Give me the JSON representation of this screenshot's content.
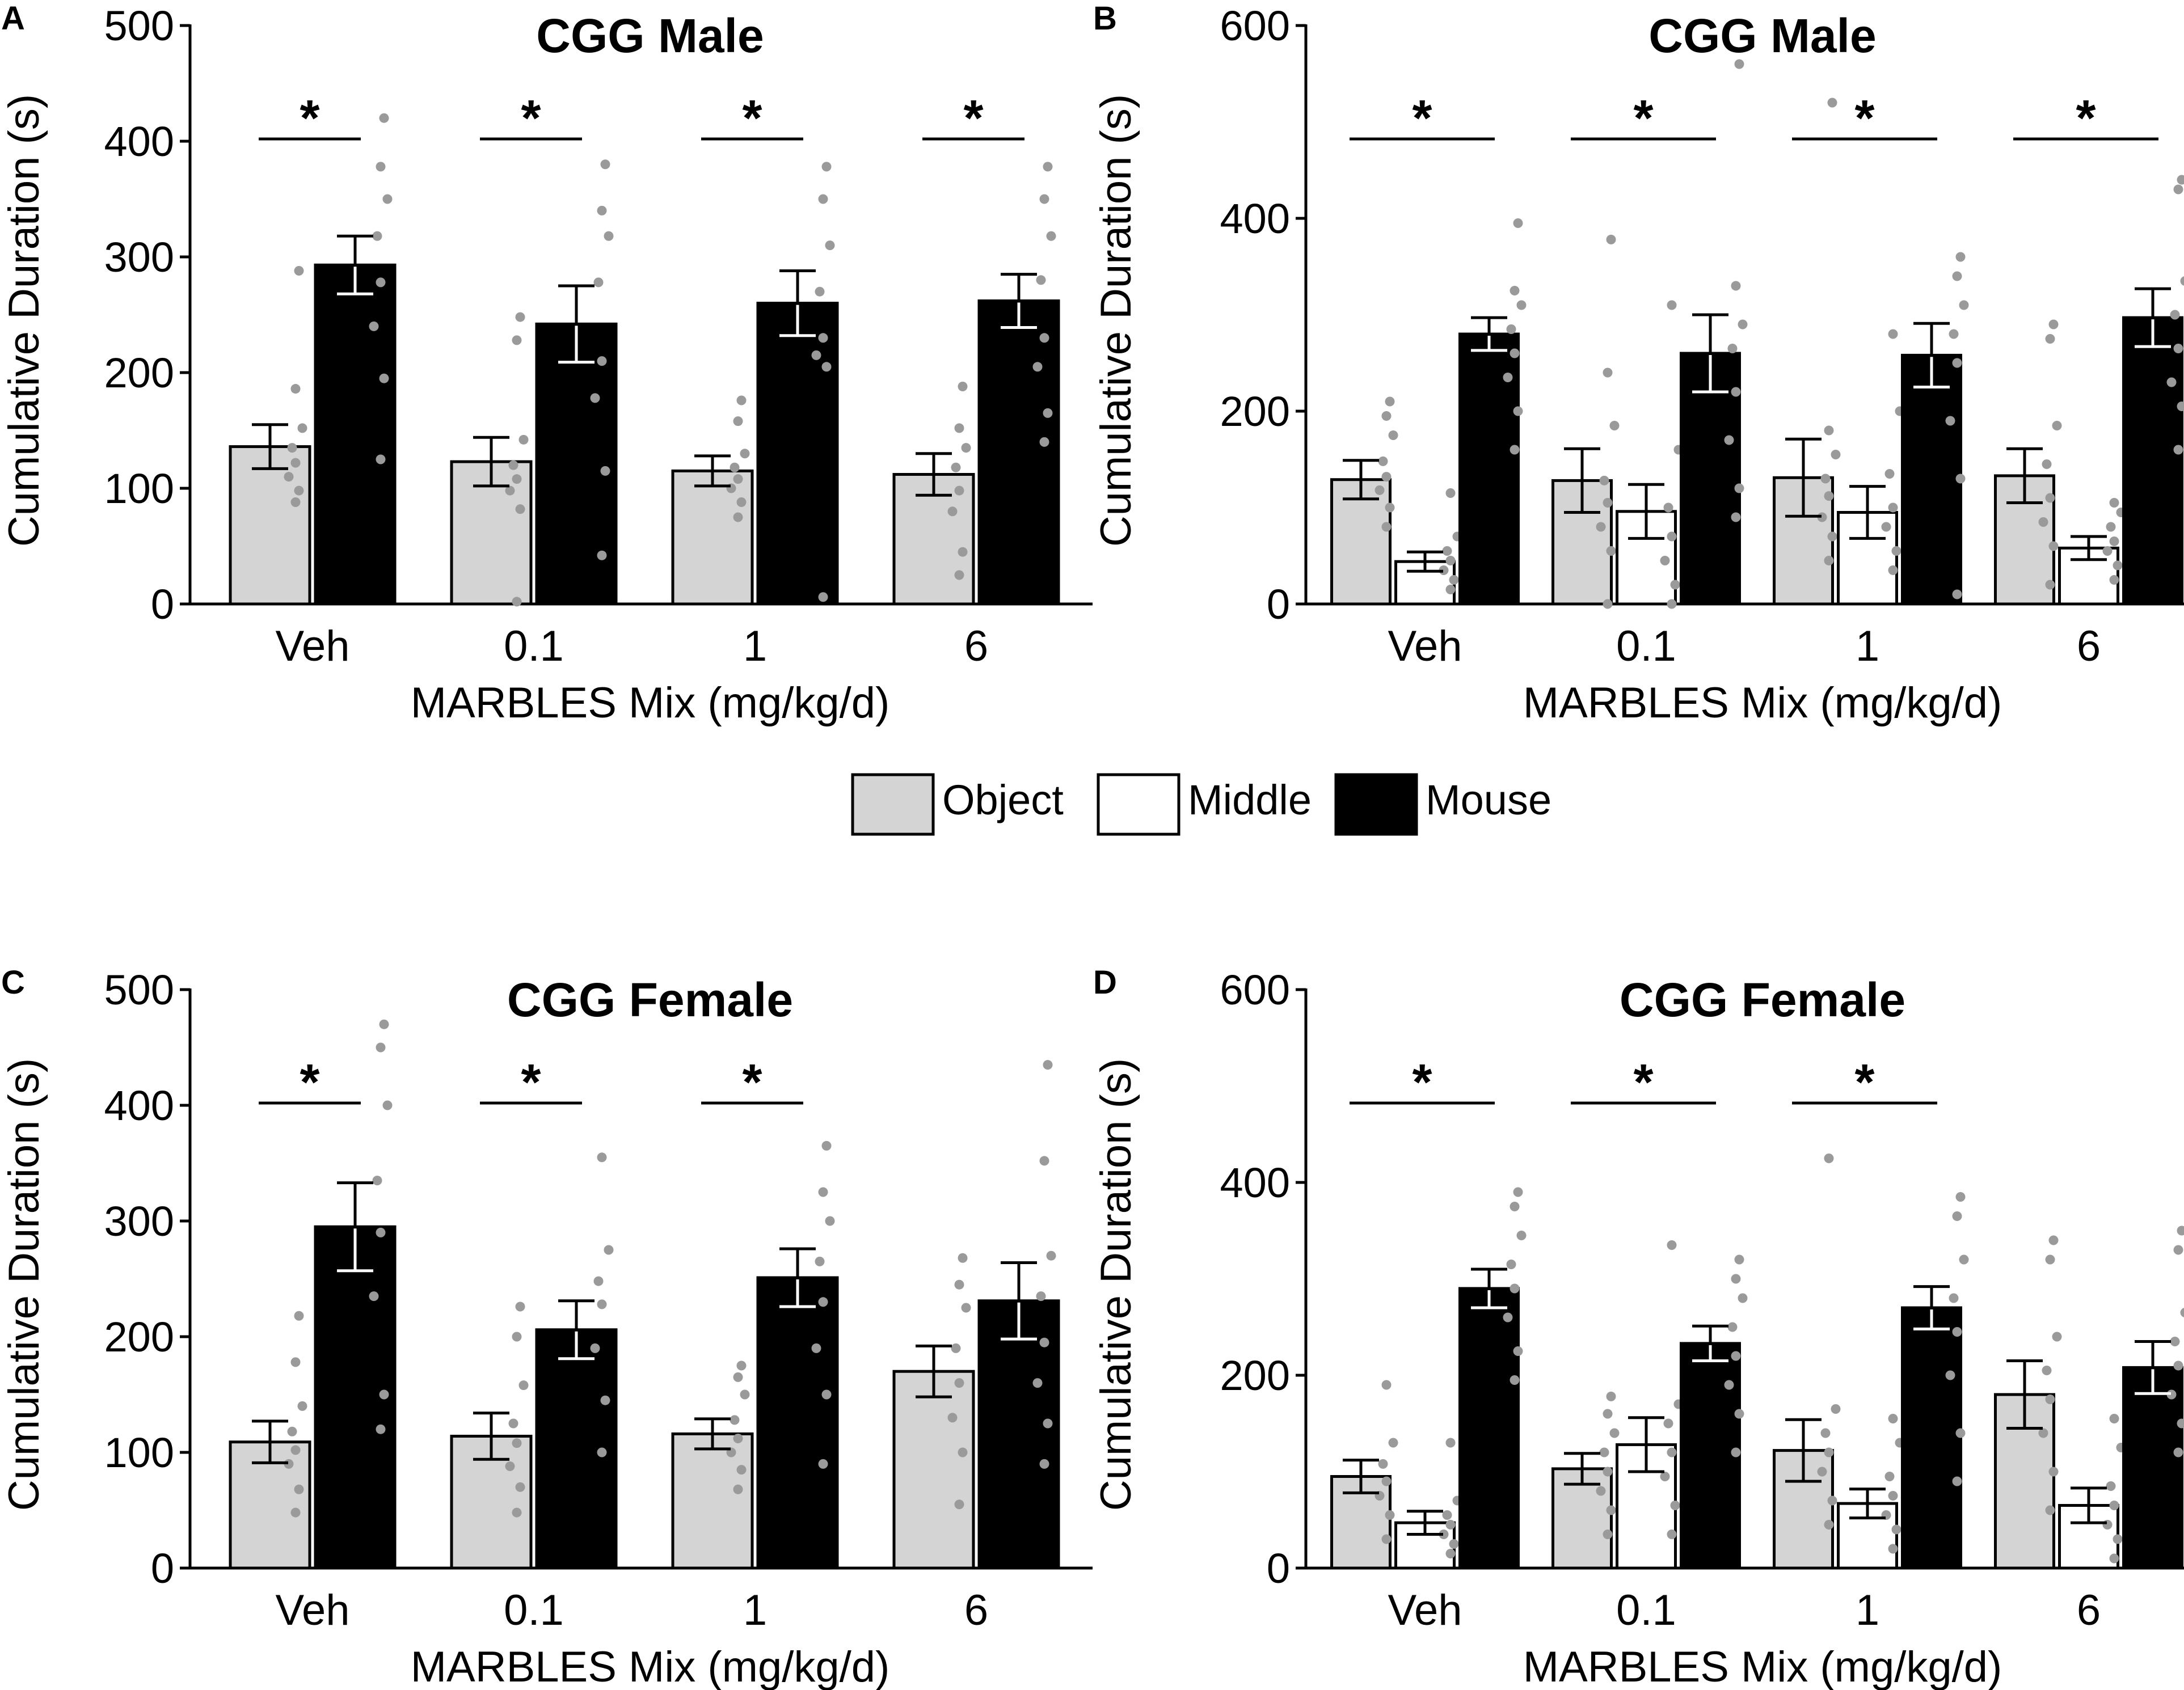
{
  "legend": {
    "items": [
      {
        "name": "Object",
        "color": "#d4d4d4"
      },
      {
        "name": "Middle",
        "color": "#ffffff"
      },
      {
        "name": "Mouse",
        "color": "#000000"
      }
    ]
  },
  "chart_data": [
    {
      "panel": "A",
      "type": "bar",
      "title": "CGG Male",
      "xlabel": "MARBLES Mix (mg/kg/d)",
      "ylabel": "Cumulative Duration (s)",
      "ylim": [
        0,
        500
      ],
      "yticks": [
        0,
        100,
        200,
        300,
        400,
        500
      ],
      "categories": [
        "Veh",
        "0.1",
        "1",
        "6"
      ],
      "series": [
        {
          "name": "Object",
          "values": [
            136,
            123,
            115,
            112
          ],
          "errors": [
            19,
            21,
            13,
            18
          ],
          "points": [
            [
              88,
              98,
              110,
              122,
              135,
              152,
              186,
              288
            ],
            [
              2,
              82,
              98,
              108,
              120,
              142,
              228,
              248
            ],
            [
              75,
              88,
              100,
              108,
              118,
              130,
              158,
              176
            ],
            [
              25,
              45,
              80,
              98,
              118,
              135,
              152,
              188
            ]
          ]
        },
        {
          "name": "Mouse",
          "values": [
            293,
            242,
            260,
            262
          ],
          "errors": [
            25,
            33,
            28,
            23
          ],
          "points": [
            [
              125,
              195,
              240,
              278,
              318,
              350,
              378,
              420
            ],
            [
              42,
              115,
              178,
              210,
              278,
              318,
              340,
              380
            ],
            [
              6,
              205,
              215,
              230,
              270,
              310,
              350,
              378
            ],
            [
              140,
              165,
              205,
              230,
              280,
              318,
              350,
              378
            ]
          ]
        }
      ],
      "significance": [
        true,
        true,
        true,
        true
      ]
    },
    {
      "panel": "B",
      "type": "bar",
      "title": "CGG Male",
      "xlabel": "MARBLES Mix (mg/kg/d)",
      "ylabel": "Cumulative Duration (s)",
      "ylim": [
        0,
        600
      ],
      "yticks": [
        0,
        200,
        400,
        600
      ],
      "categories": [
        "Veh",
        "0.1",
        "1",
        "6"
      ],
      "series": [
        {
          "name": "Object",
          "values": [
            129,
            128,
            131,
            133
          ],
          "errors": [
            20,
            33,
            40,
            28
          ],
          "points": [
            [
              80,
              100,
              118,
              132,
              148,
              175,
              195,
              210
            ],
            [
              0,
              55,
              80,
              105,
              128,
              185,
              240,
              378
            ],
            [
              45,
              70,
              90,
              112,
              130,
              155,
              180,
              520
            ],
            [
              20,
              60,
              85,
              110,
              145,
              185,
              275,
              290
            ]
          ]
        },
        {
          "name": "Middle",
          "values": [
            44,
            96,
            95,
            58
          ],
          "errors": [
            10,
            28,
            27,
            12
          ],
          "points": [
            [
              15,
              25,
              35,
              45,
              55,
              70,
              115
            ],
            [
              0,
              20,
              45,
              70,
              100,
              160,
              310
            ],
            [
              35,
              55,
              80,
              100,
              135,
              200,
              280
            ],
            [
              25,
              40,
              55,
              65,
              80,
              95,
              105
            ]
          ]
        },
        {
          "name": "Mouse",
          "values": [
            280,
            260,
            258,
            297
          ],
          "errors": [
            17,
            40,
            33,
            30
          ],
          "points": [
            [
              160,
              200,
              235,
              260,
              285,
              310,
              325,
              395
            ],
            [
              90,
              120,
              170,
              220,
              265,
              290,
              330,
              560
            ],
            [
              10,
              130,
              190,
              250,
              280,
              310,
              340,
              360
            ],
            [
              160,
              205,
              230,
              265,
              300,
              335,
              430,
              440
            ]
          ]
        }
      ],
      "significance": [
        true,
        true,
        true,
        true
      ]
    },
    {
      "panel": "C",
      "type": "bar",
      "title": "CGG Female",
      "xlabel": "MARBLES Mix (mg/kg/d)",
      "ylabel": "Cumulative Duration (s)",
      "ylim": [
        0,
        500
      ],
      "yticks": [
        0,
        100,
        200,
        300,
        400,
        500
      ],
      "categories": [
        "Veh",
        "0.1",
        "1",
        "6"
      ],
      "series": [
        {
          "name": "Object",
          "values": [
            109,
            114,
            116,
            170
          ],
          "errors": [
            18,
            20,
            13,
            22
          ],
          "points": [
            [
              48,
              68,
              90,
              102,
              118,
              140,
              178,
              218
            ],
            [
              48,
              70,
              88,
              108,
              125,
              158,
              200,
              226
            ],
            [
              68,
              85,
              100,
              112,
              128,
              150,
              165,
              175
            ],
            [
              55,
              100,
              130,
              160,
              190,
              225,
              245,
              268
            ]
          ]
        },
        {
          "name": "Mouse",
          "values": [
            295,
            206,
            251,
            231
          ],
          "errors": [
            38,
            25,
            25,
            33
          ],
          "points": [
            [
              120,
              150,
              235,
              290,
              335,
              400,
              450,
              470
            ],
            [
              100,
              145,
              190,
              228,
              248,
              275,
              355
            ],
            [
              90,
              150,
              190,
              230,
              265,
              300,
              325,
              365
            ],
            [
              90,
              125,
              160,
              195,
              235,
              270,
              352,
              435
            ]
          ]
        }
      ],
      "significance": [
        true,
        true,
        true,
        false
      ]
    },
    {
      "panel": "D",
      "type": "bar",
      "title": "CGG Female",
      "xlabel": "MARBLES Mix (mg/kg/d)",
      "ylabel": "Cumulative Duration (s)",
      "ylim": [
        0,
        600
      ],
      "yticks": [
        0,
        200,
        400,
        600
      ],
      "categories": [
        "Veh",
        "0.1",
        "1",
        "6"
      ],
      "series": [
        {
          "name": "Object",
          "values": [
            95,
            103,
            122,
            180
          ],
          "errors": [
            17,
            16,
            32,
            35
          ],
          "points": [
            [
              30,
              55,
              75,
              90,
              108,
              130,
              190
            ],
            [
              35,
              60,
              80,
              100,
              120,
              140,
              160,
              178
            ],
            [
              45,
              70,
              100,
              120,
              140,
              165,
              425
            ],
            [
              60,
              100,
              140,
              175,
              205,
              240,
              320,
              340
            ]
          ]
        },
        {
          "name": "Middle",
          "values": [
            47,
            128,
            67,
            65
          ],
          "errors": [
            12,
            28,
            15,
            18
          ],
          "points": [
            [
              15,
              25,
              35,
              45,
              55,
              70,
              130
            ],
            [
              35,
              65,
              95,
              120,
              150,
              170,
              335
            ],
            [
              20,
              40,
              55,
              75,
              95,
              130,
              155
            ],
            [
              10,
              30,
              45,
              65,
              85,
              125,
              155
            ]
          ]
        },
        {
          "name": "Mouse",
          "values": [
            290,
            233,
            270,
            208
          ],
          "errors": [
            20,
            18,
            22,
            27
          ],
          "points": [
            [
              195,
              225,
              260,
              290,
              315,
              345,
              375,
              390
            ],
            [
              120,
              160,
              190,
              220,
              250,
              280,
              300,
              320
            ],
            [
              90,
              140,
              200,
              245,
              280,
              320,
              365,
              385
            ],
            [
              120,
              150,
              180,
              210,
              235,
              265,
              330,
              350
            ]
          ]
        }
      ],
      "significance": [
        true,
        true,
        true,
        false
      ]
    }
  ]
}
